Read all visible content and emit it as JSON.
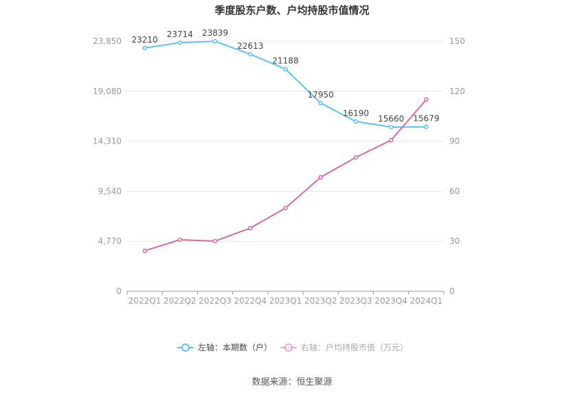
{
  "chart_data": {
    "type": "line",
    "title": "季度股东户数、户均持股市值情况",
    "categories": [
      "2022Q1",
      "2022Q2",
      "2022Q3",
      "2022Q4",
      "2023Q1",
      "2023Q2",
      "2023Q3",
      "2023Q4",
      "2024Q1"
    ],
    "left_axis": {
      "ticks": [
        0,
        4770,
        9540,
        14310,
        19080,
        23850
      ],
      "tick_labels": [
        "0",
        "4,770",
        "9,540",
        "14,310",
        "19,080",
        "23,850"
      ],
      "range": [
        0,
        23850
      ]
    },
    "right_axis": {
      "ticks": [
        0,
        30,
        60,
        90,
        120,
        150
      ],
      "tick_labels": [
        "0",
        "30",
        "60",
        "90",
        "120",
        "150"
      ],
      "range": [
        0,
        150
      ]
    },
    "grid": true,
    "legend_placement": "bottom",
    "series": [
      {
        "name": "左轴：本期数（户）",
        "axis": "left",
        "color": "#5bc0f8",
        "values": [
          23210,
          23714,
          23839,
          22613,
          21188,
          17950,
          16190,
          15660,
          15679
        ],
        "data_labels": [
          "23210",
          "23714",
          "23839",
          "22613",
          "21188",
          "17950",
          "16190",
          "15660",
          "15679"
        ]
      },
      {
        "name": "右轴：户均持股市值（万元）",
        "axis": "right",
        "color": "#d966a8",
        "values": [
          24.3,
          30.9,
          30.1,
          37.9,
          49.9,
          68.4,
          80.3,
          90.6,
          115.0
        ]
      }
    ],
    "source": "数据来源：恒生聚源"
  }
}
